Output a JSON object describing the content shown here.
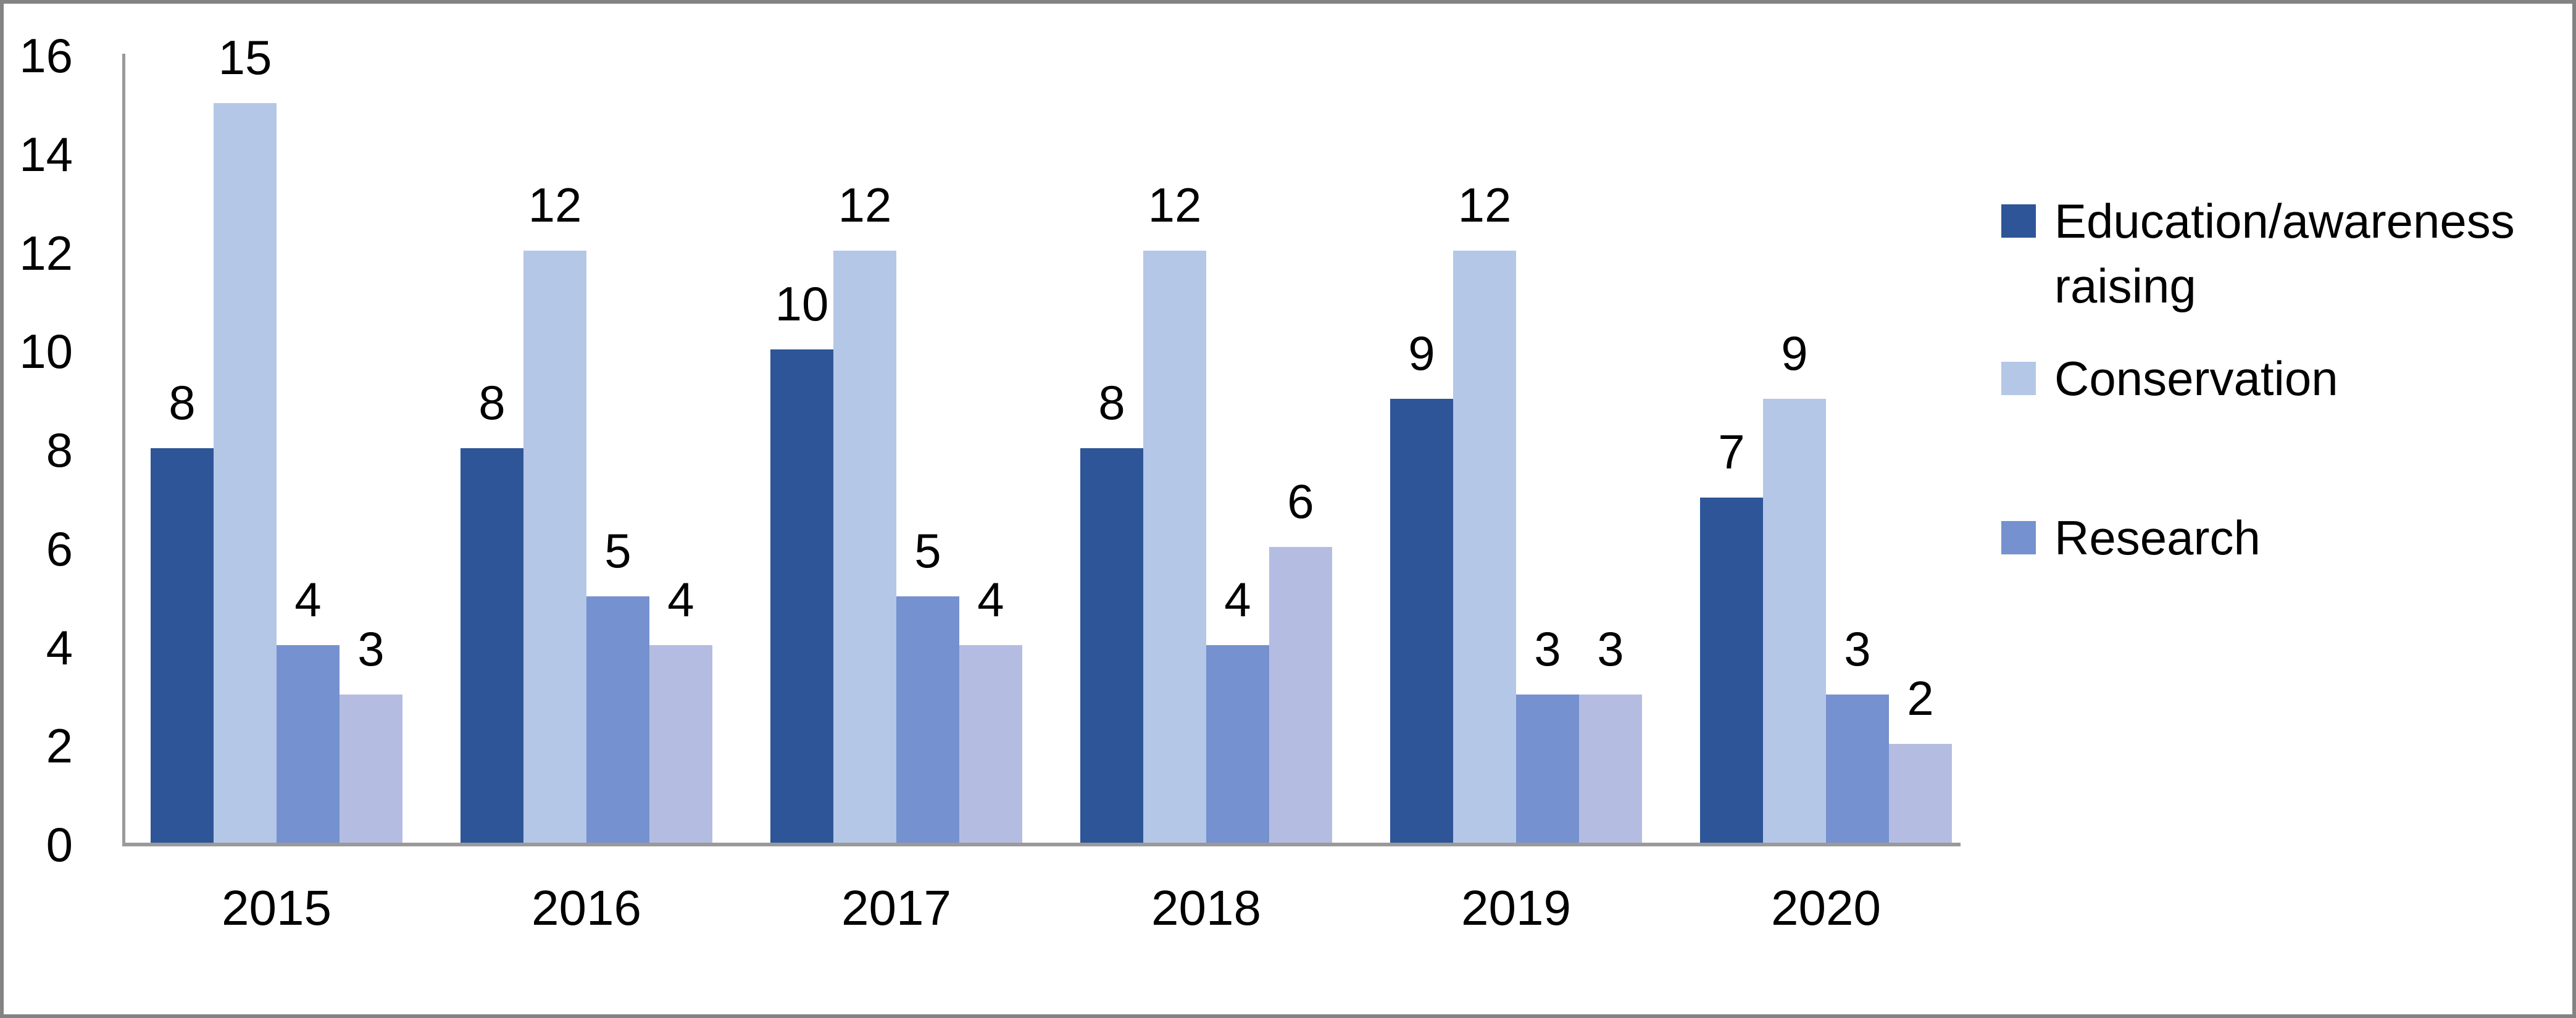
{
  "chart_data": {
    "type": "bar",
    "title": "",
    "xlabel": "",
    "ylabel": "",
    "categories": [
      "2015",
      "2016",
      "2017",
      "2018",
      "2019",
      "2020"
    ],
    "series": [
      {
        "name": "Education/awareness raising",
        "color": "#2E5597",
        "in_legend": true,
        "values": [
          8,
          8,
          10,
          8,
          9,
          7
        ]
      },
      {
        "name": "Conservation",
        "color": "#B4C7E7",
        "in_legend": true,
        "values": [
          15,
          12,
          12,
          12,
          12,
          9
        ]
      },
      {
        "name": "Research",
        "color": "#7591CF",
        "in_legend": true,
        "values": [
          4,
          5,
          5,
          4,
          3,
          3
        ]
      },
      {
        "name": "",
        "color": "#B4BDE1",
        "in_legend": false,
        "values": [
          3,
          4,
          4,
          6,
          3,
          2
        ]
      }
    ],
    "ylim": [
      0,
      16
    ],
    "yticks": [
      0,
      2,
      4,
      6,
      8,
      10,
      12,
      14,
      16
    ],
    "grid": false,
    "data_labels": true,
    "legend_position": "right"
  },
  "style": {
    "axis_color": "#9A9A9A",
    "frame_color": "#838383",
    "text_color": "#000000",
    "background": "#FFFFFF"
  }
}
